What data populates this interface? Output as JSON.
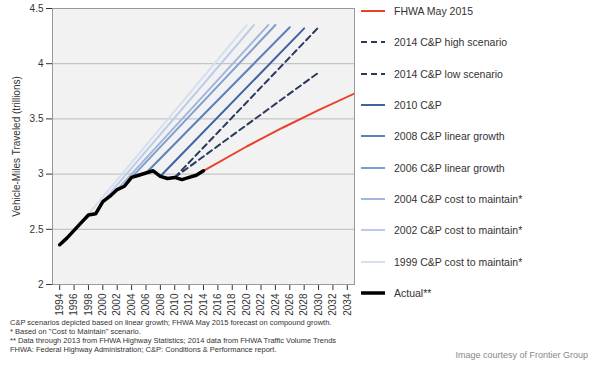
{
  "chart_data": {
    "type": "line",
    "y_label": "Vehicle-Miles Traveled (trillions)",
    "xlim": [
      1993,
      2035
    ],
    "xticks": [
      1994,
      1996,
      1998,
      2000,
      2002,
      2004,
      2006,
      2008,
      2010,
      2012,
      2014,
      2016,
      2018,
      2020,
      2022,
      2024,
      2026,
      2028,
      2030,
      2032,
      2034
    ],
    "ylim": [
      2,
      4.5
    ],
    "yticks": [
      2,
      2.5,
      3,
      3.5,
      4,
      4.5
    ],
    "grid": true,
    "legend": "right",
    "series": [
      {
        "name": "FHWA May 2015",
        "color": "#e8412c",
        "line_style": "solid",
        "x": [
          2014,
          2020,
          2025,
          2030,
          2035
        ],
        "values": [
          3.03,
          3.25,
          3.42,
          3.58,
          3.73
        ]
      },
      {
        "name": "2014 C&P high scenario",
        "color": "#2b3a5c",
        "line_style": "dashed",
        "x": [
          2010,
          2030
        ],
        "values": [
          2.97,
          4.33
        ]
      },
      {
        "name": "2014 C&P low scenario",
        "color": "#2b3a5c",
        "line_style": "dashed",
        "x": [
          2010,
          2030
        ],
        "values": [
          2.97,
          3.92
        ]
      },
      {
        "name": "2010 C&P",
        "color": "#3f62a3",
        "line_style": "solid",
        "x": [
          2008,
          2028
        ],
        "values": [
          2.98,
          4.32
        ]
      },
      {
        "name": "2008 C&P linear growth",
        "color": "#5d81bf",
        "line_style": "solid",
        "x": [
          2006,
          2026
        ],
        "values": [
          3.01,
          4.33
        ]
      },
      {
        "name": "2006 C&P linear growth",
        "color": "#7e9dd0",
        "line_style": "solid",
        "x": [
          2004,
          2024
        ],
        "values": [
          2.97,
          4.35
        ]
      },
      {
        "name": "2004 C&P cost to maintain*",
        "color": "#9fb6dd",
        "line_style": "solid",
        "x": [
          2002,
          2023
        ],
        "values": [
          2.86,
          4.35
        ]
      },
      {
        "name": "2002 C&P cost to maintain*",
        "color": "#bccbe7",
        "line_style": "solid",
        "x": [
          2000,
          2021
        ],
        "values": [
          2.75,
          4.35
        ]
      },
      {
        "name": "1999 C&P cost to maintain*",
        "color": "#d5dfef",
        "line_style": "solid",
        "x": [
          1997,
          2020
        ],
        "values": [
          2.56,
          4.35
        ]
      },
      {
        "name": "Actual**",
        "color": "#000000",
        "line_style": "heavy",
        "x": [
          1994,
          1995,
          1996,
          1997,
          1998,
          1999,
          2000,
          2001,
          2002,
          2003,
          2004,
          2005,
          2006,
          2007,
          2008,
          2009,
          2010,
          2011,
          2012,
          2013,
          2014
        ],
        "values": [
          2.36,
          2.42,
          2.49,
          2.56,
          2.63,
          2.64,
          2.75,
          2.8,
          2.86,
          2.89,
          2.97,
          2.99,
          3.01,
          3.03,
          2.98,
          2.96,
          2.97,
          2.95,
          2.97,
          2.99,
          3.03
        ]
      }
    ],
    "annotations": [
      "C&P scenarios depicted based on linear growth; FHWA May 2015 forecast on compound growth.",
      "* Based on \"Cost to Maintain\" scenario.",
      "** Data through 2013 from FHWA Highway Statistics; 2014 data from FHWA Traffic Volume Trends",
      "FHWA: Federal Highway Administration; C&P: Conditions & Performance report."
    ],
    "source": "Image courtesy of Frontier Group"
  }
}
